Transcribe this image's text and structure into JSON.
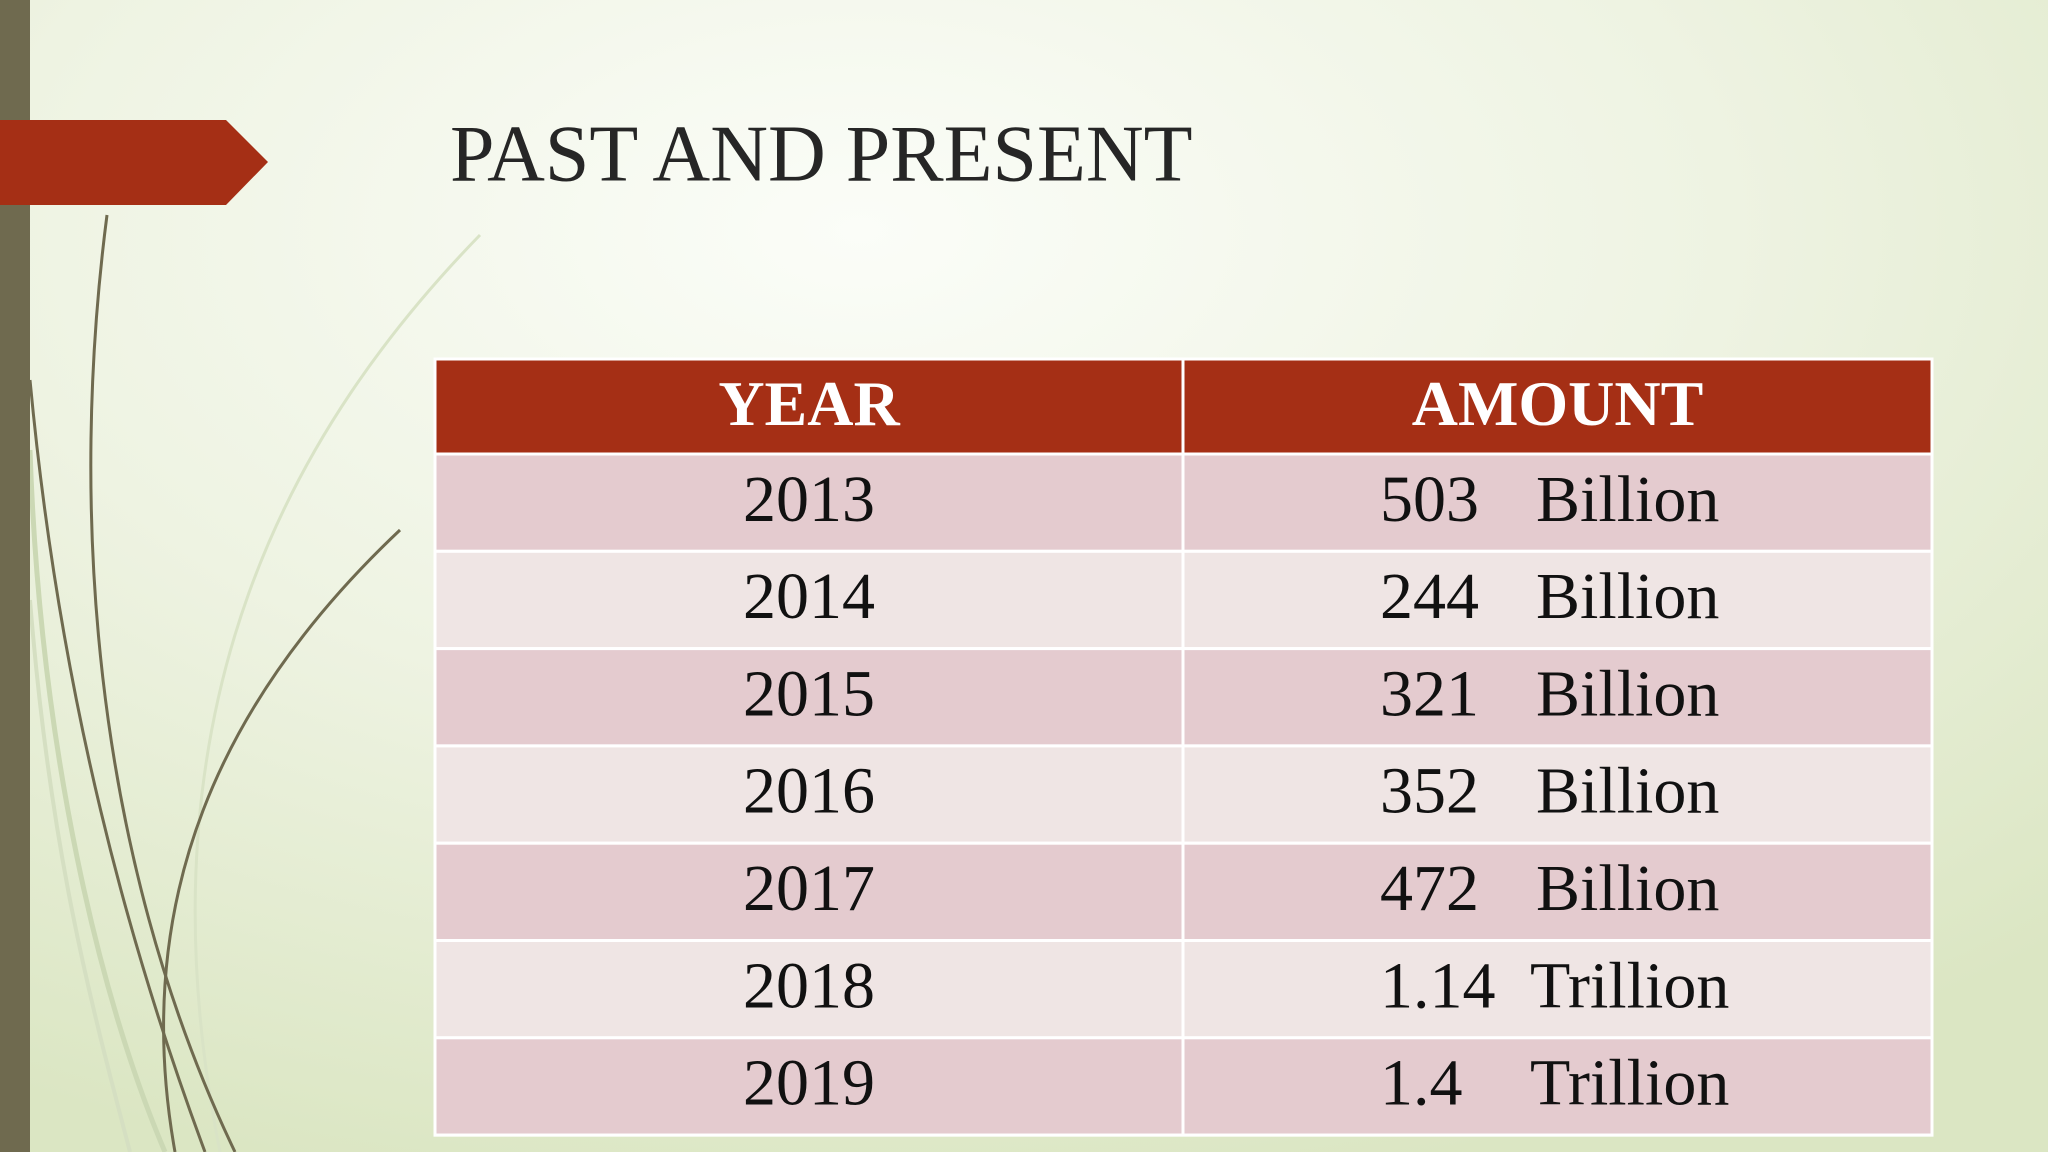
{
  "header": {
    "title": "PAST AND PRESENT"
  },
  "table": {
    "columns": [
      "YEAR",
      "AMOUNT"
    ],
    "rows": [
      {
        "year": "2013",
        "number": "503",
        "unit": "Billion"
      },
      {
        "year": "2014",
        "number": "244",
        "unit": "Billion"
      },
      {
        "year": "2015",
        "number": "321",
        "unit": "Billion"
      },
      {
        "year": "2016",
        "number": "352",
        "unit": "Billion"
      },
      {
        "year": "2017",
        "number": "472",
        "unit": "Billion"
      },
      {
        "year": "2018",
        "number": "1.14",
        "unit": "Trillion"
      },
      {
        "year": "2019",
        "number": "1.4",
        "unit": "Trillion"
      }
    ]
  }
}
